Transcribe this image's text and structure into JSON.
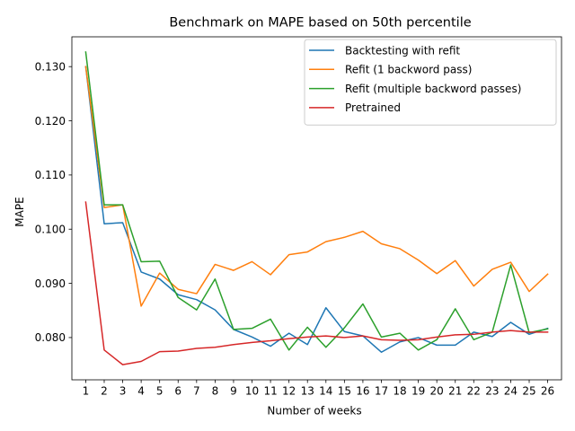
{
  "chart_data": {
    "type": "line",
    "title": "Benchmark on MAPE based on 50th percentile",
    "xlabel": "Number of weeks",
    "ylabel": "MAPE",
    "x": [
      1,
      2,
      3,
      4,
      5,
      6,
      7,
      8,
      9,
      10,
      11,
      12,
      13,
      14,
      15,
      16,
      17,
      18,
      19,
      20,
      21,
      22,
      23,
      24,
      25,
      26
    ],
    "xlim": [
      0.25,
      26.75
    ],
    "ylim": [
      0.0722,
      0.1355
    ],
    "yticks": [
      0.08,
      0.09,
      0.1,
      0.11,
      0.12,
      0.13
    ],
    "ytick_labels": [
      "0.080",
      "0.090",
      "0.100",
      "0.110",
      "0.120",
      "0.130"
    ],
    "grid": false,
    "legend_position": "upper right",
    "series": [
      {
        "name": "Backtesting with refit",
        "color": "#1f77b4",
        "values": [
          0.13,
          0.101,
          0.1012,
          0.0921,
          0.0908,
          0.0879,
          0.087,
          0.0851,
          0.0815,
          0.0801,
          0.0784,
          0.0808,
          0.0787,
          0.0855,
          0.0811,
          0.0803,
          0.0773,
          0.0792,
          0.08,
          0.0786,
          0.0786,
          0.081,
          0.0802,
          0.0828,
          0.0806,
          0.0817
        ]
      },
      {
        "name": "Refit (1 backword pass)",
        "color": "#ff7f0e",
        "values": [
          0.13,
          0.104,
          0.1045,
          0.0858,
          0.0919,
          0.0889,
          0.0881,
          0.0935,
          0.0924,
          0.094,
          0.0916,
          0.0953,
          0.0958,
          0.0977,
          0.0985,
          0.0996,
          0.0973,
          0.0964,
          0.0943,
          0.0918,
          0.0942,
          0.0895,
          0.0926,
          0.0939,
          0.0885,
          0.0917
        ]
      },
      {
        "name": "Refit (multiple backword passes)",
        "color": "#2ca02c",
        "values": [
          0.1327,
          0.1045,
          0.1045,
          0.094,
          0.0941,
          0.0874,
          0.0851,
          0.0908,
          0.0815,
          0.0817,
          0.0834,
          0.0777,
          0.0819,
          0.0782,
          0.0818,
          0.0862,
          0.0801,
          0.0808,
          0.0777,
          0.0796,
          0.0853,
          0.0796,
          0.081,
          0.0934,
          0.0809,
          0.0816
        ]
      },
      {
        "name": "Pretrained",
        "color": "#d62728",
        "values": [
          0.105,
          0.0777,
          0.075,
          0.0756,
          0.0774,
          0.0775,
          0.078,
          0.0782,
          0.0787,
          0.0791,
          0.0794,
          0.0798,
          0.0801,
          0.0803,
          0.08,
          0.0803,
          0.0796,
          0.0795,
          0.0796,
          0.0801,
          0.0805,
          0.0806,
          0.081,
          0.0813,
          0.081,
          0.081
        ]
      }
    ]
  }
}
